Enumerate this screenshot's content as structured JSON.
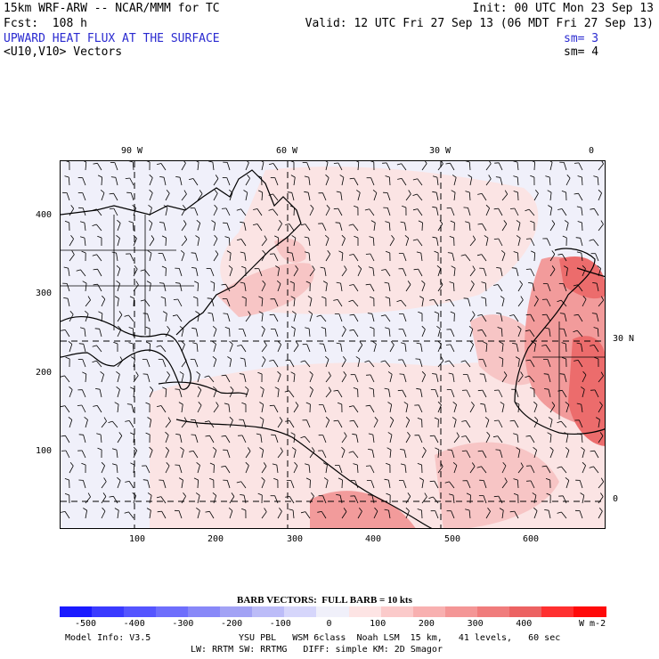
{
  "header": {
    "model_line": "15km WRF-ARW -- NCAR/MMM for TC",
    "init_line": "Init: 00 UTC Mon 23 Sep 13",
    "fcst_line": "Fcst:  108 h",
    "valid_line": "Valid: 12 UTC Fri 27 Sep 13 (06 MDT Fri 27 Sep 13)",
    "field_title": "UPWARD HEAT FLUX AT THE SURFACE",
    "field_sm": "sm= 3",
    "vector_title": "<U10,V10> Vectors",
    "vector_sm": "sm= 4"
  },
  "map": {
    "top_labels": [
      "90 W",
      "60 W",
      "30 W",
      "0"
    ],
    "right_labels": [
      "30 N",
      "0"
    ],
    "y_ticks": [
      "400",
      "300",
      "200",
      "100"
    ],
    "x_ticks": [
      "100",
      "200",
      "300",
      "400",
      "500",
      "600"
    ],
    "colors": {
      "background": "#f0f0fa",
      "ocean_light_pink": "#fbe4e4",
      "pink": "#f7c5c5",
      "salmon": "#f29b9b",
      "red": "#ec6c6c",
      "coast": "#000000"
    }
  },
  "footer": {
    "barb_label": "BARB VECTORS:  FULL BARB = 10 kts",
    "colorbar_ticks": [
      "-500",
      "-400",
      "-300",
      "-200",
      "-100",
      "0",
      "100",
      "200",
      "300",
      "400"
    ],
    "units": "W m-2",
    "colorbar_colors": [
      "#1a1aff",
      "#3a3aff",
      "#5555ff",
      "#6e6efc",
      "#8888f8",
      "#a2a2f5",
      "#bcbcf8",
      "#d6d6fb",
      "#f0f0fa",
      "#fde4e4",
      "#fbcaca",
      "#f8b0b0",
      "#f49696",
      "#f07c7c",
      "#ec6262",
      "#ff3030",
      "#ff0a0a"
    ],
    "model_info": "Model Info: V3.5",
    "physics_line1": "YSU PBL   WSM 6class  Noah LSM  15 km,   41 levels,   60 sec",
    "physics_line2": "LW: RRTM SW: RRTMG   DIFF: simple KM: 2D Smagor"
  }
}
